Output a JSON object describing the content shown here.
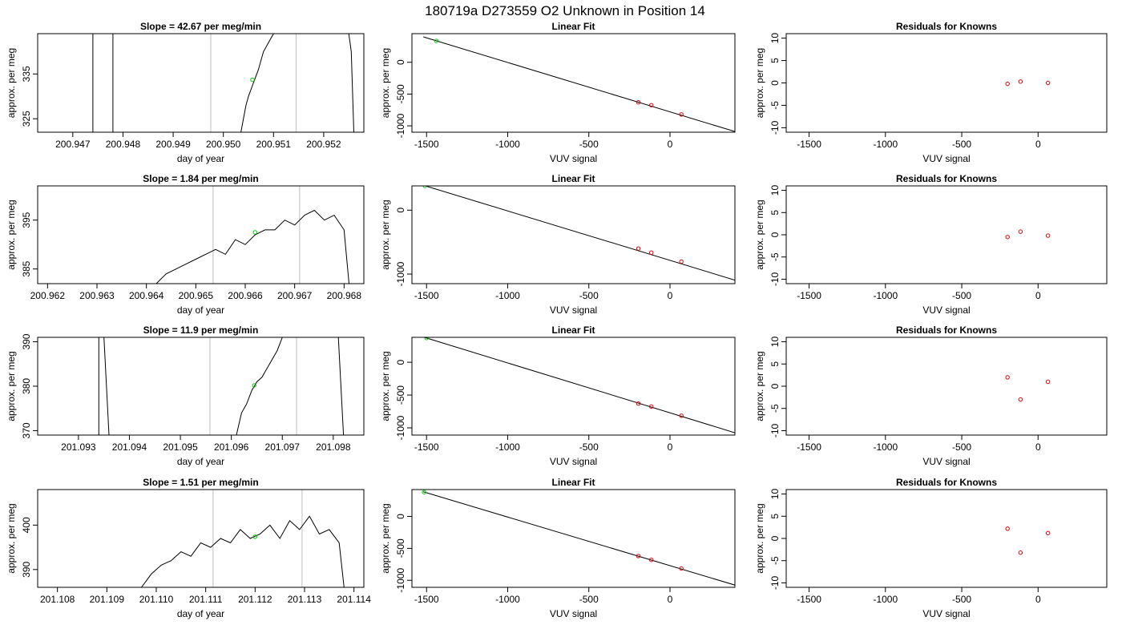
{
  "title": "180719a     D273559   O2 Unknown in Position  14",
  "chart_data": [
    {
      "type": "line",
      "title": "Slope =  42.67  per meg/min",
      "xlabel": "day of year",
      "ylabel": "approx. per meg",
      "xlim": [
        200.9463,
        200.9528
      ],
      "ylim": [
        322,
        344
      ],
      "xticks": [
        "200.947",
        "200.948",
        "200.949",
        "200.950",
        "200.951",
        "200.952"
      ],
      "yticks": [
        "325",
        "335"
      ],
      "vlines": [
        200.94975,
        200.95145
      ],
      "marker": {
        "x": 200.95058,
        "y": 333.7
      },
      "series": [
        {
          "x": [
            200.9474,
            200.9474,
            200.9474,
            200.9478,
            200.9478,
            200.9478,
            200.95035,
            200.95045,
            200.9505,
            200.9506,
            200.9507,
            200.95075,
            200.9508,
            200.9509,
            200.951,
            200.9525,
            200.95255,
            200.9526
          ],
          "y": [
            322,
            344,
            322,
            322,
            344,
            322,
            322,
            328,
            330,
            333,
            336,
            338,
            340,
            342,
            344,
            344,
            340,
            322
          ]
        }
      ]
    },
    {
      "type": "line",
      "title": "Slope =  1.84  per meg/min",
      "xlabel": "day of year",
      "ylabel": "approx. per meg",
      "xlim": [
        200.9618,
        200.9684
      ],
      "ylim": [
        382,
        402
      ],
      "xticks": [
        "200.962",
        "200.963",
        "200.964",
        "200.965",
        "200.966",
        "200.967",
        "200.968"
      ],
      "yticks": [
        "385",
        "395"
      ],
      "vlines": [
        200.96535,
        200.9671
      ],
      "marker": {
        "x": 200.9662,
        "y": 392.5
      },
      "series": [
        {
          "x": [
            200.9642,
            200.9644,
            200.9646,
            200.9648,
            200.965,
            200.9652,
            200.9654,
            200.9656,
            200.9658,
            200.966,
            200.9662,
            200.9664,
            200.9666,
            200.9668,
            200.967,
            200.9672,
            200.9674,
            200.9676,
            200.9678,
            200.968,
            200.9681
          ],
          "y": [
            382,
            384,
            385,
            386,
            387,
            388,
            389,
            388,
            391,
            390,
            392,
            393,
            393,
            395,
            394,
            396,
            397,
            395,
            396,
            393,
            382
          ]
        }
      ]
    },
    {
      "type": "line",
      "title": "Slope =  11.9  per meg/min",
      "xlabel": "day of year",
      "ylabel": "approx. per meg",
      "xlim": [
        201.0922,
        201.0986
      ],
      "ylim": [
        369,
        391
      ],
      "xticks": [
        "201.093",
        "201.094",
        "201.095",
        "201.096",
        "201.097",
        "201.098"
      ],
      "yticks": [
        "370",
        "380",
        "390"
      ],
      "vlines": [
        201.09558,
        201.09728
      ],
      "marker": {
        "x": 201.09645,
        "y": 380.2
      },
      "series": [
        {
          "x": [
            201.0934,
            201.0934,
            201.0935,
            201.0935,
            201.0936,
            201.0961,
            201.0962,
            201.0963,
            201.0964,
            201.0965,
            201.0966,
            201.0967,
            201.0968,
            201.0969,
            201.097,
            201.0972,
            201.0975,
            201.0977,
            201.0981,
            201.0982
          ],
          "y": [
            369,
            391,
            391,
            391,
            369,
            369,
            374,
            376,
            379,
            381,
            382,
            384,
            386,
            388,
            391,
            391,
            391,
            391,
            391,
            369
          ]
        }
      ]
    },
    {
      "type": "line",
      "title": "Slope =  1.51  per meg/min",
      "xlabel": "day of year",
      "ylabel": "approx. per meg",
      "xlim": [
        201.1076,
        201.1142
      ],
      "ylim": [
        386,
        408
      ],
      "xticks": [
        "201.108",
        "201.109",
        "201.110",
        "201.111",
        "201.112",
        "201.113",
        "201.114"
      ],
      "yticks": [
        "390",
        "400"
      ],
      "vlines": [
        201.11115,
        201.11295
      ],
      "marker": {
        "x": 201.112,
        "y": 397.4
      },
      "series": [
        {
          "x": [
            201.1097,
            201.1099,
            201.1101,
            201.1103,
            201.1105,
            201.1107,
            201.1109,
            201.1111,
            201.1113,
            201.1115,
            201.1117,
            201.1119,
            201.1121,
            201.1123,
            201.1125,
            201.1127,
            201.1129,
            201.1131,
            201.1133,
            201.1135,
            201.1137,
            201.1138
          ],
          "y": [
            386,
            389,
            391,
            392,
            394,
            393,
            396,
            395,
            397,
            396,
            399,
            397,
            398,
            400,
            397,
            401,
            399,
            402,
            398,
            399,
            396,
            386
          ]
        }
      ]
    },
    {
      "type": "scatter",
      "title": "Linear Fit",
      "xlabel": "VUV signal",
      "ylabel": "approx. per meg",
      "xlim": [
        -1590,
        400
      ],
      "ylim": [
        -1100,
        450
      ],
      "xticks": [
        -1500,
        -1000,
        -500,
        0
      ],
      "yticks": [
        0,
        -500,
        -1000
      ],
      "fit_line": {
        "x": [
          -1520,
          400
        ],
        "y": [
          400,
          -1090
        ]
      },
      "knowns": {
        "x": [
          -195,
          -115,
          70
        ],
        "y": [
          -630,
          -675,
          -820
        ]
      },
      "unknown": {
        "x": -1440,
        "y": 335
      }
    },
    {
      "type": "scatter",
      "title": "Linear Fit",
      "xlabel": "VUV signal",
      "ylabel": "approx. per meg",
      "xlim": [
        -1590,
        400
      ],
      "ylim": [
        -1150,
        380
      ],
      "xticks": [
        -1500,
        -1000,
        -500,
        0
      ],
      "yticks": [
        0,
        -1000
      ],
      "fit_line": {
        "x": [
          -1520,
          400
        ],
        "y": [
          390,
          -1095
        ]
      },
      "knowns": {
        "x": [
          -195,
          -115,
          70
        ],
        "y": [
          -600,
          -665,
          -805
        ]
      },
      "unknown": {
        "x": -1510,
        "y": 380
      }
    },
    {
      "type": "scatter",
      "title": "Linear Fit",
      "xlabel": "VUV signal",
      "ylabel": "approx. per meg",
      "xlim": [
        -1590,
        400
      ],
      "ylim": [
        -1110,
        380
      ],
      "xticks": [
        -1500,
        -1000,
        -500,
        0
      ],
      "yticks": [
        0,
        -500,
        -1000
      ],
      "fit_line": {
        "x": [
          -1520,
          400
        ],
        "y": [
          385,
          -1075
        ]
      },
      "knowns": {
        "x": [
          -195,
          -115,
          70
        ],
        "y": [
          -630,
          -675,
          -815
        ]
      },
      "unknown": {
        "x": -1500,
        "y": 370
      }
    },
    {
      "type": "scatter",
      "title": "Linear Fit",
      "xlabel": "VUV signal",
      "ylabel": "approx. per meg",
      "xlim": [
        -1590,
        400
      ],
      "ylim": [
        -1110,
        420
      ],
      "xticks": [
        -1500,
        -1000,
        -500,
        0
      ],
      "yticks": [
        0,
        -500,
        -1000
      ],
      "fit_line": {
        "x": [
          -1520,
          400
        ],
        "y": [
          385,
          -1075
        ]
      },
      "knowns": {
        "x": [
          -195,
          -115,
          70
        ],
        "y": [
          -620,
          -680,
          -815
        ]
      },
      "unknown": {
        "x": -1515,
        "y": 380
      }
    },
    {
      "type": "scatter",
      "title": "Residuals for Knowns",
      "xlabel": "VUV signal",
      "ylabel": "approx. per meg",
      "xlim": [
        -1650,
        450
      ],
      "ylim": [
        -11,
        11
      ],
      "xticks": [
        -1500,
        -1000,
        -500,
        0
      ],
      "yticks": [
        10,
        5,
        0,
        -5,
        -10
      ],
      "points": {
        "x": [
          -200,
          -115,
          65
        ],
        "y": [
          -0.2,
          0.3,
          0.0
        ]
      }
    },
    {
      "type": "scatter",
      "title": "Residuals for Knowns",
      "xlabel": "VUV signal",
      "ylabel": "approx. per meg",
      "xlim": [
        -1650,
        450
      ],
      "ylim": [
        -11,
        11
      ],
      "xticks": [
        -1500,
        -1000,
        -500,
        0
      ],
      "yticks": [
        10,
        5,
        0,
        -5,
        -10
      ],
      "points": {
        "x": [
          -200,
          -115,
          65
        ],
        "y": [
          -0.5,
          0.7,
          -0.2
        ]
      }
    },
    {
      "type": "scatter",
      "title": "Residuals for Knowns",
      "xlabel": "VUV signal",
      "ylabel": "approx. per meg",
      "xlim": [
        -1650,
        450
      ],
      "ylim": [
        -11,
        11
      ],
      "xticks": [
        -1500,
        -1000,
        -500,
        0
      ],
      "yticks": [
        10,
        5,
        0,
        -5,
        -10
      ],
      "points": {
        "x": [
          -200,
          -115,
          65
        ],
        "y": [
          2.0,
          -3.0,
          1.0
        ]
      }
    },
    {
      "type": "scatter",
      "title": "Residuals for Knowns",
      "xlabel": "VUV signal",
      "ylabel": "approx. per meg",
      "xlim": [
        -1650,
        450
      ],
      "ylim": [
        -11,
        11
      ],
      "xticks": [
        -1500,
        -1000,
        -500,
        0
      ],
      "yticks": [
        10,
        5,
        0,
        -5,
        -10
      ],
      "points": {
        "x": [
          -200,
          -115,
          65
        ],
        "y": [
          2.2,
          -3.2,
          1.2
        ]
      }
    }
  ],
  "colors": {
    "line": "#000000",
    "vline": "#bebebe",
    "unknown_point": "#00cc00",
    "known_point": "#dd0000"
  }
}
